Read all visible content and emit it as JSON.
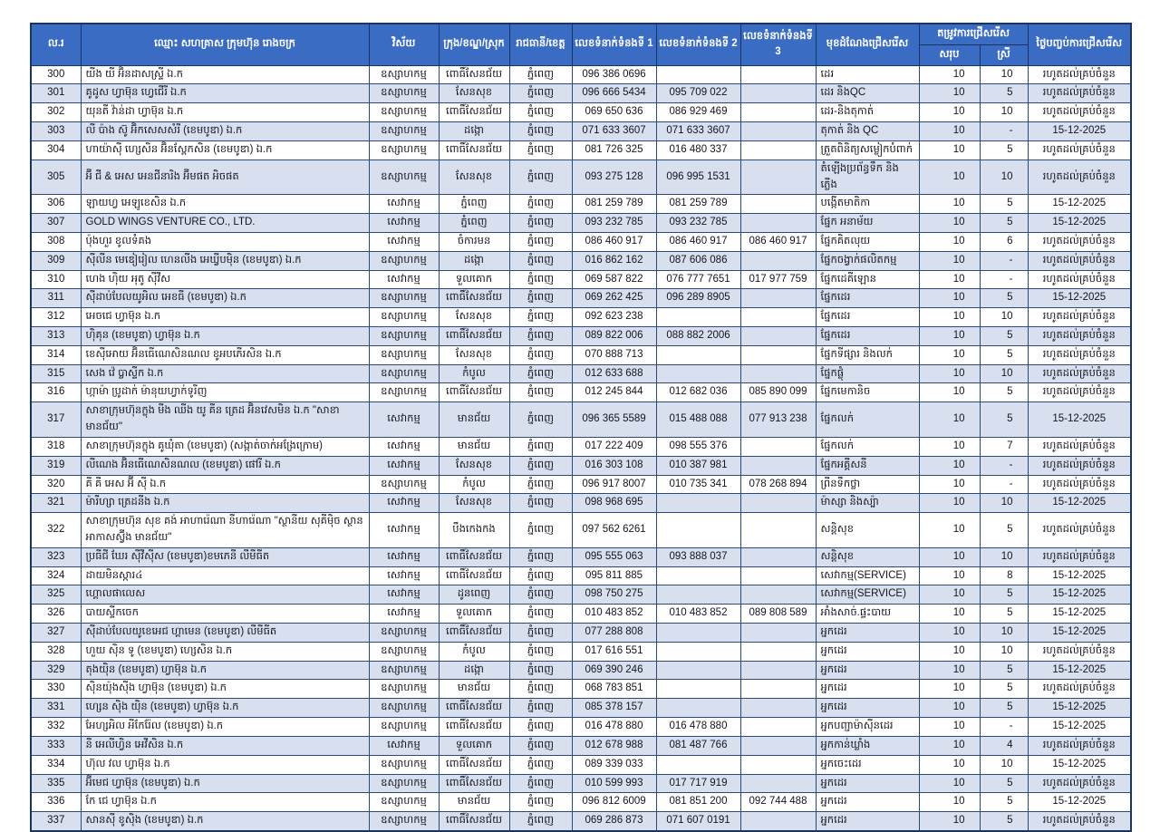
{
  "table": {
    "headers": {
      "no": "ល.រ",
      "name": "ឈ្មោះ សហគ្រាស ក្រុមហ៊ុន រោងចក្រ",
      "sector": "វិស័យ",
      "district": "ក្រុង/ខណ្ឌ/ស្រុក",
      "province": "រាជធានី/ខេត្ត",
      "phone1": "លេខទំនាក់ទំនងទី 1",
      "phone2": "លេខទំនាក់ទំនងទី 2",
      "phone3": "លេខទំនាក់ទំនងទី 3",
      "position": "មុខដំណែងជ្រើសរើស",
      "need_group": "តម្រូវការជ្រើសរើស",
      "need_total": "សរុប",
      "need_female": "ស្រី",
      "end_date": "ថ្ងៃបញ្ចប់ការជ្រើសរើស"
    },
    "colors": {
      "header_bg": "#3a6cc4",
      "header_text": "#ffffff",
      "band_row_bg": "#d8dfee",
      "border": "#2c4a78",
      "outer_border": "#17355e"
    },
    "rows": [
      [
        "300",
        "យីង យី អ៊ិនដាសស្ទ្រី ឯ.ក",
        "ឧស្សាហកម្ម",
        "ពោធិ៍សែនជ័យ",
        "ភ្នំពេញ",
        "096 386 0696",
        "",
        "",
        "ដេរ",
        "10",
        "10",
        "រហូតដល់គ្រប់ចំនួន"
      ],
      [
        "301",
        "គូដូស ហ្វាម៊ុន ហ្វេជើរី ឯ.ក",
        "ឧស្សាហកម្ម",
        "សែនសុខ",
        "ភ្នំពេញ",
        "096 666 5434",
        "095 709 022",
        "",
        "ដេរ និងQC",
        "10",
        "5",
        "រហូតដល់គ្រប់ចំនួន"
      ],
      [
        "302",
        "យុនតី វ៉ាន់ដា ហ្វាម៊ុន ឯ.ក",
        "ឧស្សាហកម្ម",
        "ពោធិ៍សែនជ័យ",
        "ភ្នំពេញ",
        "069 650 636",
        "086 929 469",
        "",
        "ដេរ-និងតុកាត់",
        "10",
        "10",
        "រហូតដល់គ្រប់ចំនួន"
      ],
      [
        "303",
        "លី ប៉ាង ស៊ូ អ៊ិកសេសសំរី (ខេមបូឌា) ឯ.ក",
        "ឧស្សាហកម្ម",
        "ដង្កោ",
        "ភ្នំពេញ",
        "071 633 3607",
        "071 633 3607",
        "",
        "តុកាត់ និង QC",
        "10",
        "-",
        "15-12-2025"
      ],
      [
        "304",
        "ហាយ៉ាស៊ី ហ្សេសិន អ៊ិនស្ពែកសិន (ខេមបូឌា) ឯ.ក",
        "ឧស្សាហកម្ម",
        "ពោធិ៍សែនជ័យ",
        "ភ្នំពេញ",
        "081 726 325",
        "016 480 337",
        "",
        "ត្រួតពិនិត្យសម្លៀកបំពាក់",
        "10",
        "5",
        "រហូតដល់គ្រប់ចំនួន"
      ],
      [
        "305",
        "អ៊ី ជី & អេស អេនជីនារិង អ៊ីមផត អិចផត",
        "ឧស្សាហកម្ម",
        "សែនសុខ",
        "ភ្នំពេញ",
        "093 275 128",
        "096 995 1531",
        "",
        "តំឡើងប្រព័ន្ធទឹក និងភ្លើង",
        "10",
        "10",
        "រហូតដល់គ្រប់ចំនួន"
      ],
      [
        "306",
        "ឡាយហ្វ អេឡូខេសិន ឯ.ក",
        "សេវាកម្ម",
        "ភ្នំពេញ",
        "ភ្នំពេញ",
        "081 259 789",
        "081 259 789",
        "",
        "បង្កើតមាតិកា",
        "10",
        "5",
        "15-12-2025"
      ],
      [
        "307",
        "GOLD WINGS VENTURE CO., LTD.",
        "សេវាកម្ម",
        "ភ្នំពេញ",
        "ភ្នំពេញ",
        "093 232 785",
        "093 232 785",
        "",
        "ផ្នែក អនាម័យ",
        "10",
        "5",
        "15-12-2025"
      ],
      [
        "308",
        "ប៉ុងហួរ ខូលទំគង",
        "សេវាកម្ម",
        "ចំការមន",
        "ភ្នំពេញ",
        "086 460 917",
        "086 460 917",
        "086 460 917",
        "ផ្នែកគិតលុយ",
        "10",
        "6",
        "រហូតដល់គ្រប់ចំនួន"
      ],
      [
        "309",
        "ស៊ីលីន មេឌៀរៀល ហេនលីង អេឃ្វីបម៉ិន (ខេមបូឌា) ឯ.ក",
        "ឧស្សាហកម្ម",
        "ដង្កោ",
        "ភ្នំពេញ",
        "016 862 162",
        "087 606 086",
        "",
        "ផ្នែកចង្វាក់ផលិតកម្ម",
        "10",
        "-",
        "រហូតដល់គ្រប់ចំនួន"
      ],
      [
        "310",
        "ហេង ហុិយ អុតូ ស៊ីវីស",
        "សេវាកម្ម",
        "ទួលគោក",
        "ភ្នំពេញ",
        "069 587 822",
        "076 777 7651",
        "017 977 759",
        "ផ្នែកដេគីឡោន",
        "10",
        "-",
        "រហូតដល់គ្រប់ចំនួន"
      ],
      [
        "311",
        "ស៊ីដាប់បែលយូអិល អេខធី (ខេមបូឌា) ឯ.ក",
        "ឧស្សាហកម្ម",
        "ពោធិ៍សែនជ័យ",
        "ភ្នំពេញ",
        "069 262 425",
        "096 289 8905",
        "",
        "ផ្នែកដេរ",
        "10",
        "5",
        "15-12-2025"
      ],
      [
        "312",
        "អេចជេ ហ្វាម៊ុន ឯ.ក",
        "ឧស្សាហកម្ម",
        "សែនសុខ",
        "ភ្នំពេញ",
        "092 623 238",
        "",
        "",
        "ផ្នែកដេរ",
        "10",
        "10",
        "រហូតដល់គ្រប់ចំនួន"
      ],
      [
        "313",
        "ហុិគុន (ខេមបូឌា) ហ្វាម៊ុន ឯ.ក",
        "ឧស្សាហកម្ម",
        "ពោធិ៍សែនជ័យ",
        "ភ្នំពេញ",
        "089 822 006",
        "088 882 2006",
        "",
        "ផ្នែកដេរ",
        "10",
        "5",
        "រហូតដល់គ្រប់ចំនួន"
      ],
      [
        "314",
        "ខេស៊ីអោយ អ៊ិនធើណេសិនណល ខូអបភើរសិន ឯ.ក",
        "ឧស្សាហកម្ម",
        "សែនសុខ",
        "ភ្នំពេញ",
        "070 888 713",
        "",
        "",
        "ផ្នែកទីផ្សារ និងលក់",
        "10",
        "5",
        "រហូតដល់គ្រប់ចំនួន"
      ],
      [
        "315",
        "សេង វ៉េ ប្លាស្ទីក ឯ.ក",
        "ឧស្សាហកម្ម",
        "កំបូល",
        "ភ្នំពេញ",
        "012 633 688",
        "",
        "",
        "ផ្នែកផ្លុំ",
        "10",
        "10",
        "រហូតដល់គ្រប់ចំនួន"
      ],
      [
        "316",
        "ហ្កាម៉ា ប្រូដាក់ ម៉ានុយហ្វាក់ទូរីញ",
        "ឧស្សាហកម្ម",
        "ពោធិ៍សែនជ័យ",
        "ភ្នំពេញ",
        "012 245 844",
        "012 682 036",
        "085 890 099",
        "ផ្នែកមេកានិច",
        "10",
        "5",
        "រហូតដល់គ្រប់ចំនួន"
      ],
      [
        "317",
        "សាខាក្រុមហ៊ុនក្លុង មីង ឈីង យូ គីន ត្រេដ អ៊ិនវេសមិន ឯ.ក \"សាខាមានជ័យ\"",
        "សេវាកម្ម",
        "មានជ័យ",
        "ភ្នំពេញ",
        "096 365 5589",
        "015 488 088",
        "077 913 238",
        "ផ្នែកលក់",
        "10",
        "5",
        "15-12-2025"
      ],
      [
        "318",
        "សាខាក្រុមហ៊ុនក្លុង គូឃុំតា (ខេមបូឌា) (សង្កាត់ចាក់អង្រែក្រោម)",
        "សេវាកម្ម",
        "មានជ័យ",
        "ភ្នំពេញ",
        "017 222 409",
        "098 555 376",
        "",
        "ផ្នែកលក់",
        "10",
        "7",
        "រហូតដល់គ្រប់ចំនួន"
      ],
      [
        "319",
        "លីណេង អ៊ិនធើណេសិនណល (ខេមបូឌា) ផៅរី ឯ.ក",
        "សេវាកម្ម",
        "សែនសុខ",
        "ភ្នំពេញ",
        "016 303 108",
        "010 387 981",
        "",
        "ផ្នែកអគ្គីសនី",
        "10",
        "-",
        "រហូតដល់គ្រប់ចំនួន"
      ],
      [
        "320",
        "គី គី អេស អ៊ី ស៊ី ឯ.ក",
        "ឧស្សាហកម្ម",
        "កំបូល",
        "ភ្នំពេញ",
        "096 917 8007",
        "010 735 341",
        "078 268 894",
        "ព្រីនទឹកថ្លា",
        "10",
        "-",
        "រហូតដល់គ្រប់ចំនួន"
      ],
      [
        "321",
        "ម៉ារីហ្សា ត្រេដនីង ឯ.ក",
        "សេវាកម្ម",
        "សែនសុខ",
        "ភ្នំពេញ",
        "098 968 695",
        "",
        "",
        "ម៉ាស្សា និងស្ប៉ា",
        "10",
        "10",
        "15-12-2025"
      ],
      [
        "322",
        "សាខាក្រុមហ៊ុន សុខ គង់ អាហារ៉េណា នីហារ៉េណា \"ស្ថានីយ សុគីម៉ិច ស្ថានអាកាសស្វ៊ីង មានជ័យ\"",
        "សេវាកម្ម",
        "បឹងកេងកង",
        "ភ្នំពេញ",
        "097 562 6261",
        "",
        "",
        "សន្តិសុខ",
        "10",
        "5",
        "រហូតដល់គ្រប់ចំនួន"
      ],
      [
        "323",
        "ប្រធីជី ឃែរ ស៊ីវីស៊ីស (ខេមបូឌា)ខមភេនី លីមីធីត",
        "សេវាកម្ម",
        "ពោធិ៍សែនជ័យ",
        "ភ្នំពេញ",
        "095 555 063",
        "093 888 037",
        "",
        "សន្តិសុខ",
        "10",
        "10",
        "រហូតដល់គ្រប់ចំនួន"
      ],
      [
        "324",
        "ដាយមិនស្ការ៤",
        "សេវាកម្ម",
        "ពោធិ៍សែនជ័យ",
        "ភ្នំពេញ",
        "095 811 885",
        "",
        "",
        "សេវាកម្ម(SERVICE)",
        "10",
        "8",
        "15-12-2025"
      ],
      [
        "325",
        "ហ្គោលផាលេស",
        "សេវាកម្ម",
        "ដូនពេញ",
        "ភ្នំពេញ",
        "098 750 275",
        "",
        "",
        "សេវាកម្ម(SERVICE)",
        "10",
        "5",
        "15-12-2025"
      ],
      [
        "326",
        "បាយស្ទីកចេក",
        "សេវាកម្ម",
        "ទួលគោក",
        "ភ្នំពេញ",
        "010 483 852",
        "010 483 852",
        "089 808 589",
        "អាំងសាច់.ផ្ទះបាយ",
        "10",
        "5",
        "15-12-2025"
      ],
      [
        "327",
        "ស៊ីដាប់បែលយូខេអេជ ហ្គាមេន (ខេមបូឌា) លីមីធីត",
        "ឧស្សាហកម្ម",
        "ពោធិ៍សែនជ័យ",
        "ភ្នំពេញ",
        "077 288 808",
        "",
        "",
        "អ្នកដេរ",
        "10",
        "10",
        "15-12-2025"
      ],
      [
        "328",
        "ហួយ ស៊ិន ទូ (ខេមបូឌា) ហ្សេសិន ឯ.ក",
        "ឧស្សាហកម្ម",
        "កំបូល",
        "ភ្នំពេញ",
        "017 616 551",
        "",
        "",
        "អ្នកដេរ",
        "10",
        "10",
        "រហូតដល់គ្រប់ចំនួន"
      ],
      [
        "329",
        "តុងយ៉ិន (ខេមបូឌា) ហ្វាម៊ុន ឯ.ក",
        "ឧស្សាហកម្ម",
        "ដង្កោ",
        "ភ្នំពេញ",
        "069 390 246",
        "",
        "",
        "អ្នកដេរ",
        "10",
        "5",
        "15-12-2025"
      ],
      [
        "330",
        "ស៊ិនយ៉ុងស៊ីង ហ្វាម៊ុន (ខេមបូឌា) ឯ.ក",
        "ឧស្សាហកម្ម",
        "មានជ័យ",
        "ភ្នំពេញ",
        "068 783 851",
        "",
        "",
        "អ្នកដេរ",
        "10",
        "5",
        "រហូតដល់គ្រប់ចំនួន"
      ],
      [
        "331",
        "ហ្សេន ស៊ិង យ៉ិន (ខេមបូឌា) ហ្វាម៊ុន ឯ.ក",
        "ឧស្សាហកម្ម",
        "ពោធិ៍សែនជ័យ",
        "ភ្នំពេញ",
        "085 378 157",
        "",
        "",
        "អ្នកដេរ",
        "10",
        "5",
        "15-12-2025"
      ],
      [
        "332",
        "អែហ្សអិល អីកែរ៉ែល (ខេមបូឌា) ឯ.ក",
        "ឧស្សាហកម្ម",
        "ពោធិ៍សែនជ័យ",
        "ភ្នំពេញ",
        "016 478 880",
        "016 478 880",
        "",
        "អ្នកបញ្ជាម៉ាស៊ីនដេរ",
        "10",
        "-",
        "15-12-2025"
      ],
      [
        "333",
        "នី អេលីហ្វិន អេវីសិន ឯ.ក",
        "សេវាកម្ម",
        "ទួលគោក",
        "ភ្នំពេញ",
        "012 678 988",
        "081 487 766",
        "",
        "អ្នកកាន់ឃ្លាំង",
        "10",
        "4",
        "រហូតដល់គ្រប់ចំនួន"
      ],
      [
        "334",
        "ហ៊ុល វល ហ្វាម៊ុន ឯ.ក",
        "ឧស្សាហកម្ម",
        "ពោធិ៍សែនជ័យ",
        "ភ្នំពេញ",
        "089 339 033",
        "",
        "",
        "អ្នកចេះដេរ",
        "10",
        "10",
        "15-12-2025"
      ],
      [
        "335",
        "អ៊ីមេជ ហ្វាម៊ុន (ខេមបូឌា) ឯ.ក",
        "ឧស្សាហកម្ម",
        "ពោធិ៍សែនជ័យ",
        "ភ្នំពេញ",
        "010 599 993",
        "017 717 919",
        "",
        "អ្នកដេរ",
        "10",
        "5",
        "រហូតដល់គ្រប់ចំនួន"
      ],
      [
        "336",
        "កែ ជេ ហ្វាម៊ុន ឯ.ក",
        "ឧស្សាហកម្ម",
        "មានជ័យ",
        "ភ្នំពេញ",
        "096 812 6009",
        "081 851 200",
        "092 744 488",
        "អ្នកដេរ",
        "10",
        "5",
        "15-12-2025"
      ],
      [
        "337",
        "សានស៊ី ខូស៊ិង (ខេមបូឌា) ឯ.ក",
        "ឧស្សាហកម្ម",
        "ពោធិ៍សែនជ័យ",
        "ភ្នំពេញ",
        "069 286 873",
        "071 607 0191",
        "",
        "អ្នកដេរ",
        "10",
        "5",
        "រហូតដល់គ្រប់ចំនួន"
      ]
    ]
  }
}
